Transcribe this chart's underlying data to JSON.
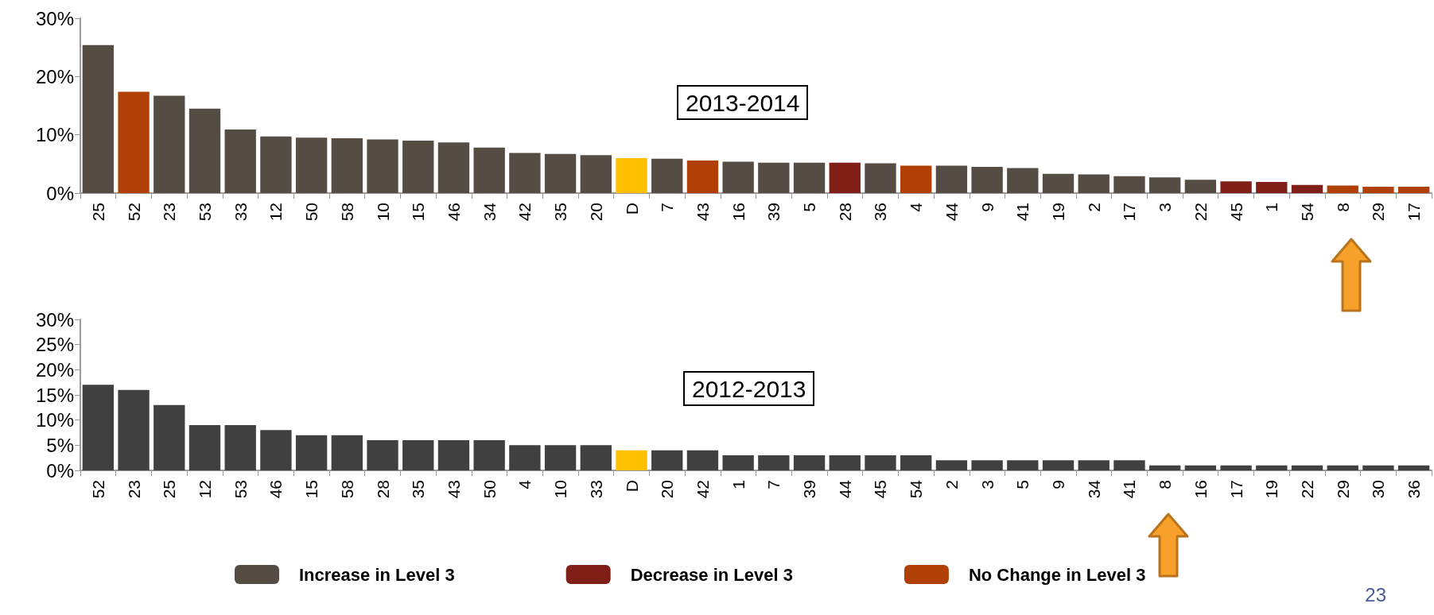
{
  "chart_data": [
    {
      "type": "bar",
      "title": "2013-2014",
      "stacked": true,
      "legend": "bottom",
      "grid": false,
      "categories": [
        "25",
        "52",
        "23",
        "53",
        "33",
        "12",
        "50",
        "58",
        "10",
        "15",
        "46",
        "34",
        "42",
        "35",
        "20",
        "D",
        "7",
        "43",
        "16",
        "39",
        "5",
        "28",
        "36",
        "4",
        "44",
        "9",
        "41",
        "19",
        "2",
        "17",
        "3",
        "22",
        "45",
        "1",
        "54",
        "8",
        "29",
        "17"
      ],
      "ylim": [
        0,
        30
      ],
      "yticks": [
        {
          "value": 0,
          "label": "0%"
        },
        {
          "value": 10,
          "label": "10%"
        },
        {
          "value": 20,
          "label": "20%"
        },
        {
          "value": 30,
          "label": "30%"
        }
      ],
      "series": [
        {
          "name": "Increase in Level 3",
          "color": "#554d44",
          "values": [
            25.4,
            null,
            16.7,
            14.5,
            10.9,
            9.7,
            9.5,
            9.4,
            9.2,
            9.0,
            8.7,
            7.8,
            6.9,
            6.7,
            6.5,
            null,
            5.9,
            null,
            5.4,
            5.2,
            5.2,
            null,
            5.1,
            null,
            4.7,
            4.5,
            4.3,
            3.3,
            3.2,
            2.9,
            2.7,
            2.3,
            null,
            null,
            null,
            null,
            null,
            null
          ]
        },
        {
          "name": "Decrease in Level 3",
          "color": "#7f1f17",
          "values": [
            null,
            null,
            null,
            null,
            null,
            null,
            null,
            null,
            null,
            null,
            null,
            null,
            null,
            null,
            null,
            null,
            null,
            null,
            null,
            null,
            null,
            5.2,
            null,
            null,
            null,
            null,
            null,
            null,
            null,
            null,
            null,
            null,
            2.0,
            1.9,
            1.4,
            null,
            null,
            null
          ]
        },
        {
          "name": "No Change in Level 3",
          "color": "#b04006",
          "values": [
            null,
            17.4,
            null,
            null,
            null,
            null,
            null,
            null,
            null,
            null,
            null,
            null,
            null,
            null,
            null,
            null,
            null,
            5.6,
            null,
            null,
            null,
            null,
            null,
            4.7,
            null,
            null,
            null,
            null,
            null,
            null,
            null,
            null,
            null,
            null,
            null,
            1.3,
            1.1,
            1.1
          ]
        },
        {
          "color": "#ffc000",
          "values": [
            null,
            null,
            null,
            null,
            null,
            null,
            null,
            null,
            null,
            null,
            null,
            null,
            null,
            null,
            null,
            6.0,
            null,
            null,
            null,
            null,
            null,
            null,
            null,
            null,
            null,
            null,
            null,
            null,
            null,
            null,
            null,
            null,
            null,
            null,
            null,
            null,
            null,
            null
          ]
        }
      ],
      "annotations": [
        "23"
      ]
    },
    {
      "type": "bar",
      "title": "2012-2013",
      "grid": false,
      "categories": [
        "52",
        "23",
        "25",
        "12",
        "53",
        "46",
        "15",
        "58",
        "28",
        "35",
        "43",
        "50",
        "4",
        "10",
        "33",
        "D",
        "20",
        "42",
        "1",
        "7",
        "39",
        "44",
        "45",
        "54",
        "2",
        "3",
        "5",
        "9",
        "34",
        "41",
        "8",
        "16",
        "17",
        "19",
        "22",
        "29",
        "30",
        "36"
      ],
      "ylim": [
        0,
        30
      ],
      "yticks": [
        {
          "value": 0,
          "label": "0%"
        },
        {
          "value": 5,
          "label": "5%"
        },
        {
          "value": 10,
          "label": "10%"
        },
        {
          "value": 15,
          "label": "15%"
        },
        {
          "value": 20,
          "label": "20%"
        },
        {
          "value": 25,
          "label": "25%"
        },
        {
          "value": 30,
          "label": "30%"
        }
      ],
      "values": [
        17,
        16,
        13,
        9,
        9,
        8,
        7,
        7,
        6,
        6,
        6,
        6,
        5,
        5,
        5,
        4,
        4,
        4,
        3,
        3,
        3,
        3,
        3,
        3,
        2,
        2,
        2,
        2,
        2,
        2,
        1,
        1,
        1,
        1,
        1,
        1,
        1,
        1
      ],
      "colors": [
        "#404040",
        "#404040",
        "#404040",
        "#404040",
        "#404040",
        "#404040",
        "#404040",
        "#404040",
        "#404040",
        "#404040",
        "#404040",
        "#404040",
        "#404040",
        "#404040",
        "#404040",
        "#ffc000",
        "#404040",
        "#404040",
        "#404040",
        "#404040",
        "#404040",
        "#404040",
        "#404040",
        "#404040",
        "#404040",
        "#404040",
        "#404040",
        "#404040",
        "#404040",
        "#404040",
        "#404040",
        "#404040",
        "#404040",
        "#404040",
        "#404040",
        "#404040",
        "#404040",
        "#404040"
      ]
    }
  ]
}
